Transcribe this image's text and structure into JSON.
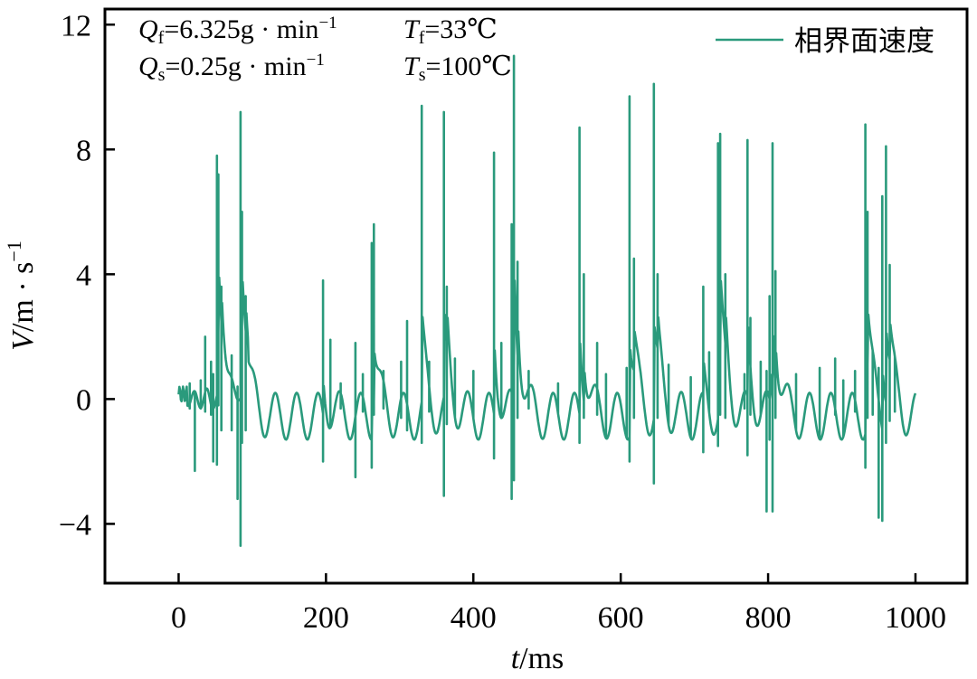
{
  "chart_data": {
    "type": "line",
    "xlabel": {
      "italic": "t",
      "rest": "/ms"
    },
    "ylabel": {
      "italic": "V",
      "rest": "/m · s",
      "sup": "−1"
    },
    "xlim": [
      -100,
      1070
    ],
    "ylim": [
      -5.9,
      12.5
    ],
    "x_ticks": [
      0,
      200,
      400,
      600,
      800,
      1000
    ],
    "y_ticks": [
      -4,
      0,
      4,
      8,
      12
    ],
    "x_tick_labels": [
      "0",
      "200",
      "400",
      "600",
      "800",
      "1000"
    ],
    "y_tick_labels": [
      "−4",
      "0",
      "4",
      "8",
      "12"
    ],
    "legend": {
      "position": "top-right",
      "label": "相界面速度"
    },
    "line_color": "#2a9a7c",
    "annotations": {
      "qf": {
        "sym": "Q",
        "sub": "f",
        "text": "=6.325g · min",
        "sup": "−1"
      },
      "tf": {
        "sym": "T",
        "sub": "f",
        "text": "=33℃"
      },
      "qs": {
        "sym": "Q",
        "sub": "s",
        "text": "=0.25g · min",
        "sup": "−1"
      },
      "ts": {
        "sym": "T",
        "sub": "s",
        "text": "=100℃"
      }
    },
    "spikes": [
      [
        15,
        0.5,
        -0.3
      ],
      [
        22,
        0.2,
        -2.3
      ],
      [
        30,
        0.6,
        -0.3
      ],
      [
        36,
        2.0,
        -0.4
      ],
      [
        44,
        1.2,
        -0.5
      ],
      [
        47,
        0.8,
        -2.0
      ],
      [
        52,
        7.8,
        -2.1
      ],
      [
        54,
        7.2,
        -0.2
      ],
      [
        58,
        3.6,
        -1.0
      ],
      [
        72,
        1.4,
        -1.0
      ],
      [
        80,
        0.4,
        -3.2
      ],
      [
        84,
        9.2,
        -4.7
      ],
      [
        86,
        6.0,
        -1.4
      ],
      [
        91,
        3.3,
        -1.0
      ],
      [
        196,
        3.8,
        -2.0
      ],
      [
        206,
        1.9,
        -0.5
      ],
      [
        220,
        0.5,
        -0.3
      ],
      [
        240,
        1.8,
        -2.5
      ],
      [
        250,
        0.8,
        -0.4
      ],
      [
        262,
        5.0,
        -2.2
      ],
      [
        265,
        5.6,
        -0.5
      ],
      [
        278,
        0.9,
        -0.3
      ],
      [
        302,
        1.2,
        -0.6
      ],
      [
        310,
        2.5,
        -1.0
      ],
      [
        330,
        9.4,
        -1.4
      ],
      [
        340,
        1.2,
        -0.4
      ],
      [
        360,
        9.2,
        -3.1
      ],
      [
        364,
        3.6,
        -0.8
      ],
      [
        375,
        1.3,
        -0.3
      ],
      [
        400,
        0.9,
        -0.3
      ],
      [
        428,
        7.9,
        -1.9
      ],
      [
        438,
        1.8,
        -0.5
      ],
      [
        452,
        5.6,
        -3.2
      ],
      [
        455,
        11.0,
        -2.6
      ],
      [
        460,
        4.4,
        -0.6
      ],
      [
        475,
        0.9,
        -0.3
      ],
      [
        515,
        0.5,
        -0.3
      ],
      [
        544,
        8.7,
        -1.4
      ],
      [
        550,
        4.0,
        -0.6
      ],
      [
        568,
        1.8,
        -0.5
      ],
      [
        580,
        0.8,
        -0.3
      ],
      [
        608,
        1.0,
        -0.4
      ],
      [
        612,
        9.7,
        -2.0
      ],
      [
        618,
        4.5,
        -0.6
      ],
      [
        645,
        10.1,
        -2.7
      ],
      [
        650,
        4.0,
        -0.6
      ],
      [
        665,
        1.1,
        -0.3
      ],
      [
        695,
        0.7,
        -0.3
      ],
      [
        712,
        3.6,
        -1.7
      ],
      [
        720,
        1.5,
        -0.4
      ],
      [
        732,
        8.2,
        -1.5
      ],
      [
        735,
        8.5,
        -0.5
      ],
      [
        742,
        4.0,
        -0.6
      ],
      [
        768,
        0.8,
        -0.3
      ],
      [
        772,
        8.3,
        -1.8
      ],
      [
        776,
        2.6,
        -0.5
      ],
      [
        790,
        1.2,
        -0.4
      ],
      [
        798,
        0.9,
        -3.6
      ],
      [
        802,
        3.3,
        -1.3
      ],
      [
        806,
        8.2,
        -3.6
      ],
      [
        810,
        4.1,
        -0.6
      ],
      [
        838,
        0.8,
        -0.4
      ],
      [
        870,
        1.0,
        -0.4
      ],
      [
        891,
        1.3,
        -0.5
      ],
      [
        902,
        0.6,
        -0.3
      ],
      [
        918,
        0.9,
        -0.4
      ],
      [
        932,
        8.8,
        -2.2
      ],
      [
        935,
        6.0,
        -0.6
      ],
      [
        942,
        1.5,
        -0.5
      ],
      [
        950,
        1.0,
        -3.8
      ],
      [
        955,
        6.5,
        -3.9
      ],
      [
        960,
        8.1,
        -1.4
      ],
      [
        965,
        4.3,
        -0.7
      ],
      [
        972,
        1.1,
        -0.4
      ]
    ]
  }
}
